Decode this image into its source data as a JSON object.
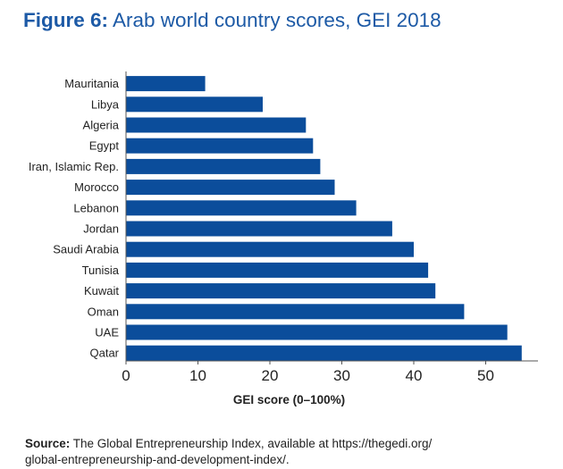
{
  "header": {
    "figure_label": "Figure 6:",
    "title": "Arab world country scores, GEI 2018"
  },
  "source": {
    "label": "Source:",
    "text_line1": "The Global Entrepreneurship Index, available at https://thegedi.org/",
    "text_line2": "global-entrepreneurship-and-development-index/."
  },
  "colors": {
    "bar": "#0b4d9b",
    "title": "#1d5aa6"
  },
  "chart_data": {
    "type": "bar",
    "orientation": "horizontal",
    "categories": [
      "Mauritania",
      "Libya",
      "Algeria",
      "Egypt",
      "Iran, Islamic Rep.",
      "Morocco",
      "Lebanon",
      "Jordan",
      "Saudi Arabia",
      "Tunisia",
      "Kuwait",
      "Oman",
      "UAE",
      "Qatar"
    ],
    "values": [
      11,
      19,
      25,
      26,
      27,
      29,
      32,
      37,
      40,
      42,
      43,
      47,
      53,
      55
    ],
    "xlabel": "GEI score (0–100%)",
    "ylabel": "",
    "xlim": [
      0,
      58
    ],
    "xticks": [
      0,
      10,
      20,
      30,
      40,
      50
    ],
    "grid": false
  }
}
